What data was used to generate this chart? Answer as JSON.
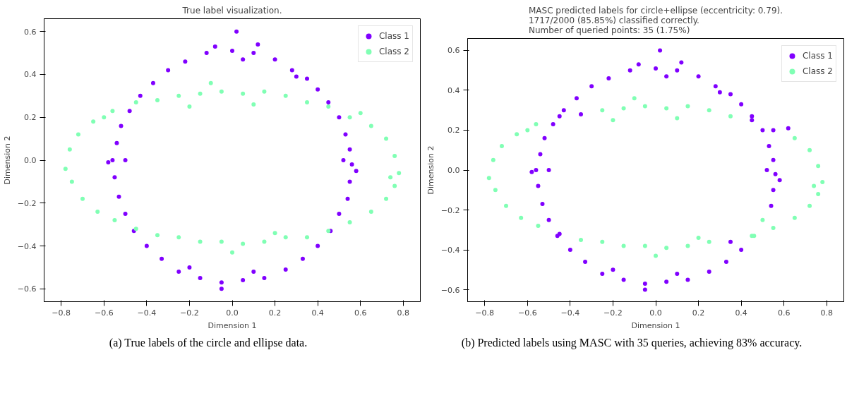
{
  "chart_data": [
    {
      "type": "scatter",
      "title": "True label visualization.",
      "xlabel": "Dimension 1",
      "ylabel": "Dimension 2",
      "xlim": [
        -0.88,
        0.88
      ],
      "ylim": [
        -0.66,
        0.66
      ],
      "xticks": [
        {
          "value": -0.8,
          "label": "−0.8"
        },
        {
          "value": -0.6,
          "label": "−0.6"
        },
        {
          "value": -0.4,
          "label": "−0.4"
        },
        {
          "value": -0.2,
          "label": "−0.2"
        },
        {
          "value": 0,
          "label": "0.0"
        },
        {
          "value": 0.2,
          "label": "0.2"
        },
        {
          "value": 0.4,
          "label": "0.4"
        },
        {
          "value": 0.6,
          "label": "0.6"
        },
        {
          "value": 0.8,
          "label": "0.8"
        }
      ],
      "yticks": [
        {
          "value": -0.6,
          "label": "−0.6"
        },
        {
          "value": -0.4,
          "label": "−0.4"
        },
        {
          "value": -0.2,
          "label": "−0.2"
        },
        {
          "value": 0,
          "label": "0.0"
        },
        {
          "value": 0.2,
          "label": "0.2"
        },
        {
          "value": 0.4,
          "label": "0.4"
        },
        {
          "value": 0.6,
          "label": "0.6"
        }
      ],
      "grid": false,
      "legend": "top right",
      "marker": "circle",
      "annotations": [
        "(a) True labels of the circle and ellipse data."
      ],
      "series": [
        {
          "name": "Class 1",
          "color": "#8000ff",
          "x": [
            0,
            0.1,
            0.2,
            0.28,
            0.35,
            0.4,
            0.45,
            0.5,
            0.53,
            0.55,
            0.56,
            0.55,
            0.54,
            0.5,
            0.46,
            0.4,
            0.33,
            0.25,
            0.15,
            0.05,
            -0.05,
            -0.15,
            -0.25,
            -0.33,
            -0.4,
            -0.46,
            -0.5,
            -0.53,
            -0.55,
            -0.56,
            -0.54,
            -0.52,
            -0.48,
            -0.43,
            -0.37,
            -0.3,
            -0.22,
            -0.12,
            0.02,
            0.05,
            -0.08,
            0.12,
            0.3,
            -0.05,
            0.1,
            -0.2,
            0.52,
            -0.5,
            0.58,
            -0.58
          ],
          "values": [
            0.51,
            0.5,
            0.47,
            0.42,
            0.38,
            0.33,
            0.27,
            0.2,
            0.12,
            0.05,
            -0.02,
            -0.1,
            -0.18,
            -0.25,
            -0.33,
            -0.4,
            -0.46,
            -0.51,
            -0.55,
            -0.56,
            -0.57,
            -0.55,
            -0.52,
            -0.46,
            -0.4,
            -0.33,
            -0.25,
            -0.17,
            -0.08,
            0,
            0.08,
            0.16,
            0.23,
            0.3,
            0.36,
            0.42,
            0.46,
            0.5,
            0.6,
            0.47,
            0.53,
            0.54,
            0.39,
            -0.6,
            -0.52,
            -0.5,
            0,
            0,
            -0.05,
            -0.01
          ]
        },
        {
          "name": "Class 2",
          "color": "#80ffb4",
          "x": [
            -0.78,
            -0.76,
            -0.72,
            -0.65,
            -0.56,
            -0.45,
            -0.35,
            -0.25,
            -0.15,
            -0.05,
            0.05,
            0.15,
            0.25,
            0.35,
            0.45,
            0.55,
            0.65,
            0.72,
            0.76,
            0.78,
            0.76,
            0.72,
            0.65,
            0.55,
            0.45,
            0.35,
            0.25,
            0.15,
            0.05,
            -0.05,
            -0.15,
            -0.25,
            -0.35,
            -0.45,
            -0.55,
            -0.63,
            -0.7,
            -0.75,
            -0.1,
            0.1,
            0,
            0.2,
            -0.2,
            0.6,
            -0.6,
            0.74
          ],
          "values": [
            -0.04,
            0.05,
            0.12,
            0.18,
            0.23,
            0.27,
            0.28,
            0.3,
            0.31,
            0.32,
            0.31,
            0.32,
            0.3,
            0.27,
            0.25,
            0.2,
            0.16,
            0.1,
            0.02,
            -0.06,
            -0.12,
            -0.18,
            -0.24,
            -0.29,
            -0.33,
            -0.36,
            -0.36,
            -0.38,
            -0.39,
            -0.38,
            -0.38,
            -0.36,
            -0.35,
            -0.32,
            -0.28,
            -0.24,
            -0.18,
            -0.1,
            0.36,
            0.26,
            -0.43,
            -0.34,
            0.25,
            0.22,
            0.2,
            -0.08
          ]
        }
      ]
    },
    {
      "type": "scatter",
      "title": "MASC predicted labels for circle+ellipse (eccentricity: 0.79).\n1717/2000 (85.85%) classified correctly.\nNumber of queried points: 35 (1.75%)",
      "xlabel": "Dimension 1",
      "ylabel": "Dimension 2",
      "xlim": [
        -0.88,
        0.88
      ],
      "ylim": [
        -0.66,
        0.66
      ],
      "xticks": [
        {
          "value": -0.8,
          "label": "−0.8"
        },
        {
          "value": -0.6,
          "label": "−0.6"
        },
        {
          "value": -0.4,
          "label": "−0.4"
        },
        {
          "value": -0.2,
          "label": "−0.2"
        },
        {
          "value": 0,
          "label": "0.0"
        },
        {
          "value": 0.2,
          "label": "0.2"
        },
        {
          "value": 0.4,
          "label": "0.4"
        },
        {
          "value": 0.6,
          "label": "0.6"
        },
        {
          "value": 0.8,
          "label": "0.8"
        }
      ],
      "yticks": [
        {
          "value": -0.6,
          "label": "−0.6"
        },
        {
          "value": -0.4,
          "label": "−0.4"
        },
        {
          "value": -0.2,
          "label": "−0.2"
        },
        {
          "value": 0,
          "label": "0.0"
        },
        {
          "value": 0.2,
          "label": "0.2"
        },
        {
          "value": 0.4,
          "label": "0.4"
        },
        {
          "value": 0.6,
          "label": "0.6"
        }
      ],
      "grid": false,
      "legend": "top right",
      "marker": "circle",
      "annotations": [
        "(b) Predicted labels using MASC with 35 queries, achieving 83% accuracy."
      ],
      "series": [
        {
          "name": "Class 1",
          "color": "#8000ff",
          "x": [
            0,
            0.1,
            0.2,
            0.28,
            0.35,
            0.4,
            0.45,
            0.5,
            0.53,
            0.55,
            0.56,
            0.55,
            0.54,
            0.4,
            0.33,
            0.25,
            0.15,
            0.05,
            -0.05,
            -0.15,
            -0.25,
            -0.33,
            -0.4,
            -0.46,
            -0.5,
            -0.53,
            -0.55,
            -0.56,
            -0.54,
            -0.52,
            -0.48,
            -0.43,
            -0.37,
            -0.3,
            -0.22,
            -0.12,
            0.02,
            0.05,
            -0.08,
            0.12,
            0.3,
            -0.05,
            0.1,
            -0.2,
            0.52,
            -0.5,
            0.58,
            -0.58,
            -0.45,
            -0.35,
            0.45,
            0.55,
            0.62,
            0.35,
            -0.45
          ],
          "values": [
            0.51,
            0.5,
            0.47,
            0.42,
            0.38,
            0.33,
            0.27,
            0.2,
            0.12,
            0.05,
            -0.02,
            -0.1,
            -0.18,
            -0.4,
            -0.46,
            -0.51,
            -0.55,
            -0.56,
            -0.57,
            -0.55,
            -0.52,
            -0.46,
            -0.4,
            -0.33,
            -0.25,
            -0.17,
            -0.08,
            0,
            0.08,
            0.16,
            0.23,
            0.3,
            0.36,
            0.42,
            0.46,
            0.5,
            0.6,
            0.47,
            0.53,
            0.54,
            0.39,
            -0.6,
            -0.52,
            -0.5,
            0,
            0,
            -0.05,
            -0.01,
            0.27,
            0.28,
            0.25,
            0.2,
            0.21,
            -0.36,
            -0.32
          ]
        },
        {
          "name": "Class 2",
          "color": "#80ffb4",
          "x": [
            -0.78,
            -0.76,
            -0.72,
            -0.65,
            -0.56,
            -0.25,
            -0.15,
            -0.05,
            0.05,
            0.15,
            0.25,
            0.35,
            0.65,
            0.72,
            0.76,
            0.78,
            0.76,
            0.72,
            0.65,
            0.55,
            0.45,
            0.25,
            0.15,
            0.05,
            -0.05,
            -0.15,
            -0.25,
            -0.35,
            -0.55,
            -0.63,
            -0.7,
            -0.75,
            -0.1,
            0.1,
            0,
            0.2,
            -0.2,
            -0.6,
            0.74,
            0.5,
            0.46
          ],
          "values": [
            -0.04,
            0.05,
            0.12,
            0.18,
            0.23,
            0.3,
            0.31,
            0.32,
            0.31,
            0.32,
            0.3,
            0.27,
            0.16,
            0.1,
            0.02,
            -0.06,
            -0.12,
            -0.18,
            -0.24,
            -0.29,
            -0.33,
            -0.36,
            -0.38,
            -0.39,
            -0.38,
            -0.38,
            -0.36,
            -0.35,
            -0.28,
            -0.24,
            -0.18,
            -0.1,
            0.36,
            0.26,
            -0.43,
            -0.34,
            0.25,
            0.2,
            -0.08,
            -0.25,
            -0.33
          ]
        }
      ]
    }
  ]
}
